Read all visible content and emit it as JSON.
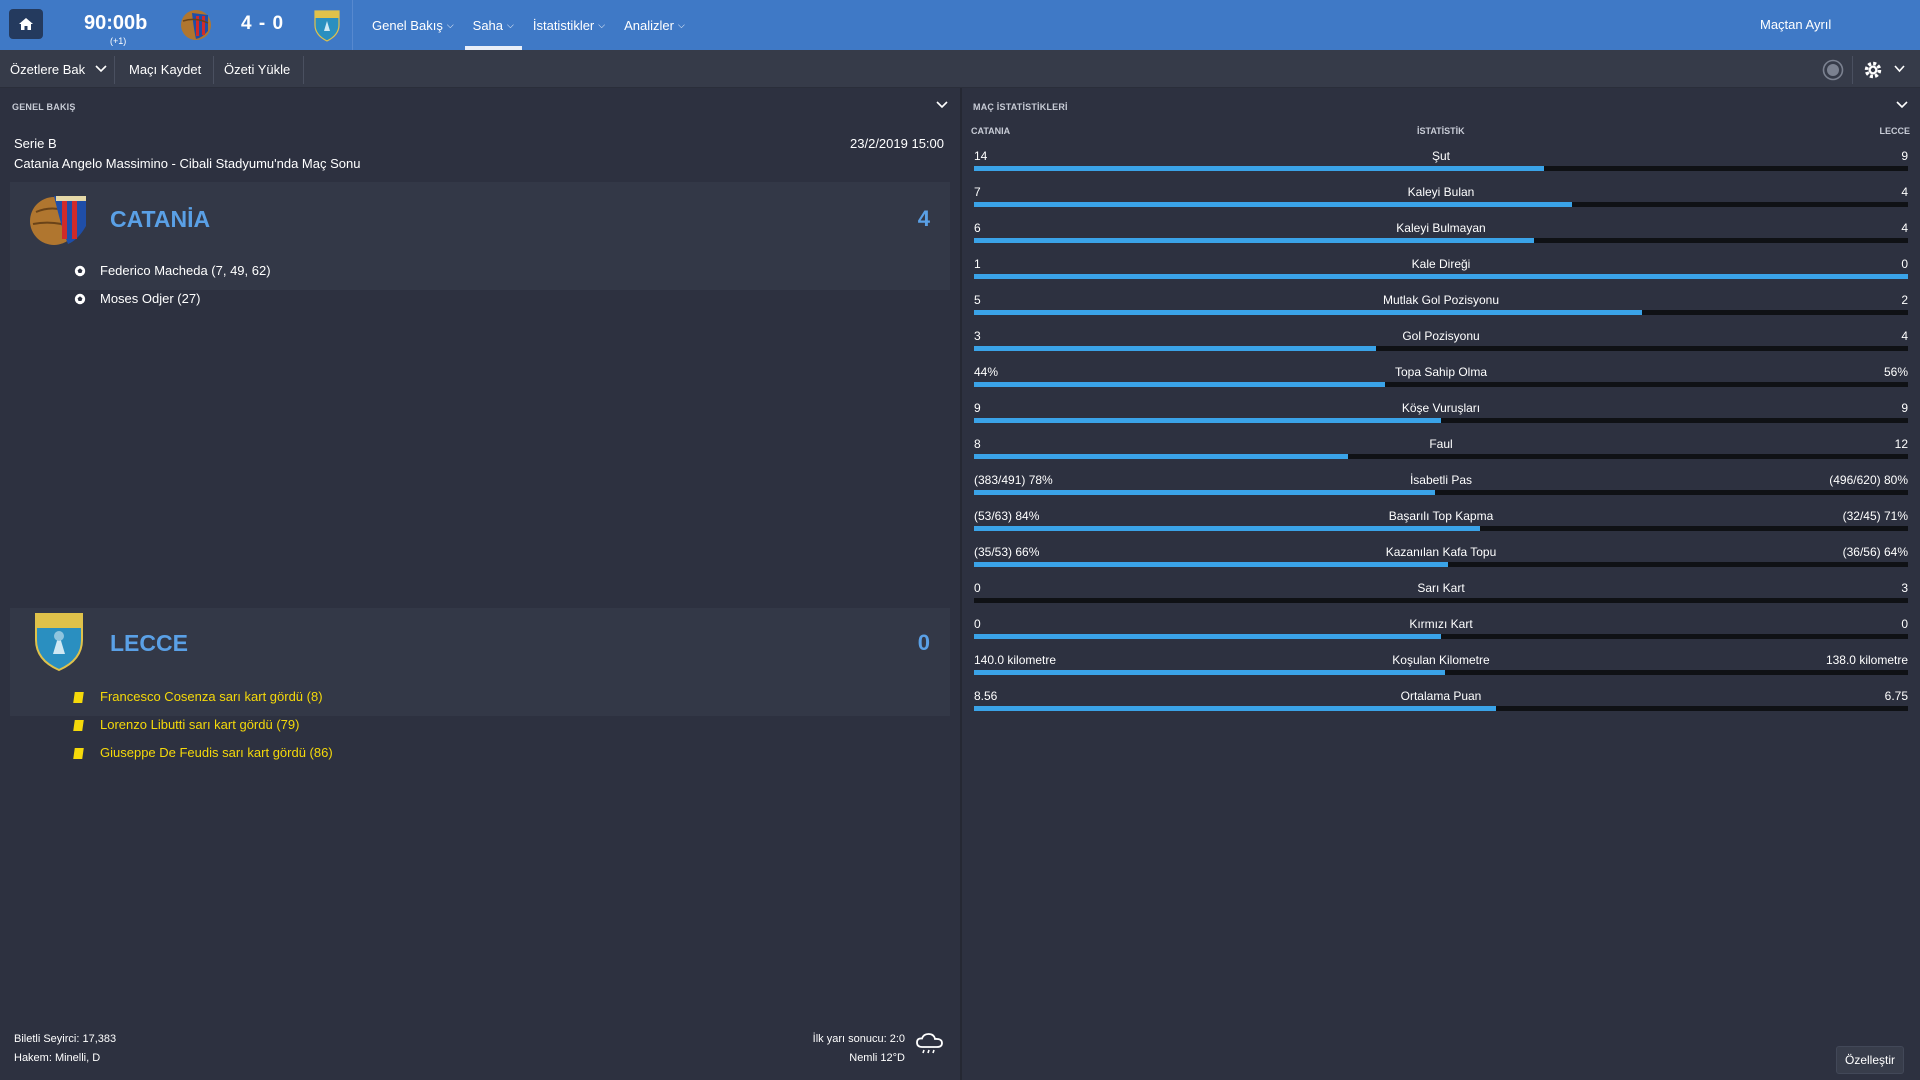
{
  "topbar": {
    "clock": "90:00b",
    "clock_extra": "(+1)",
    "score": "4 - 0",
    "nav": [
      {
        "label": "Genel Bakış",
        "active": false
      },
      {
        "label": "Saha",
        "active": true
      },
      {
        "label": "İstatistikler",
        "active": false
      },
      {
        "label": "Analizler",
        "active": false
      }
    ],
    "leave_label": "Maçtan Ayrıl"
  },
  "toolbar": {
    "highlights_label": "Özetlere Bak",
    "save_match_label": "Maçı Kaydet",
    "load_highlights_label": "Özeti Yükle"
  },
  "overview": {
    "panel_title": "GENEL BAKIŞ",
    "league": "Serie B",
    "venue": "Catania Angelo Massimino - Cibali Stadyumu'nda Maç Sonu",
    "date": "23/2/2019 15:00",
    "home": {
      "name": "CATANİA",
      "goals": "4",
      "events": [
        {
          "text": "Federico Macheda (7, 49, 62)",
          "type": "goal"
        },
        {
          "text": "Moses Odjer (27)",
          "type": "goal"
        }
      ]
    },
    "away": {
      "name": "LECCE",
      "goals": "0",
      "events": [
        {
          "text": "Francesco Cosenza sarı kart gördü (8)",
          "type": "yellow"
        },
        {
          "text": "Lorenzo Libutti sarı kart gördü (79)",
          "type": "yellow"
        },
        {
          "text": "Giuseppe De Feudis sarı kart gördü (86)",
          "type": "yellow"
        }
      ]
    },
    "attendance": "Biletli Seyirci: 17,383",
    "referee": "Hakem: Minelli, D",
    "halftime": "İlk yarı sonucu: 2:0",
    "weather": "Nemli 12°D"
  },
  "stats": {
    "panel_title": "MAÇ İSTATİSTİKLERİ",
    "col_home": "CATANIA",
    "col_stat": "İSTATİSTİK",
    "col_away": "LECCE",
    "customize_label": "Özelleştir",
    "rows": [
      {
        "home": "14",
        "label": "Şut",
        "away": "9",
        "home_share": 0.61
      },
      {
        "home": "7",
        "label": "Kaleyi Bulan",
        "away": "4",
        "home_share": 0.64
      },
      {
        "home": "6",
        "label": "Kaleyi Bulmayan",
        "away": "4",
        "home_share": 0.6
      },
      {
        "home": "1",
        "label": "Kale Direği",
        "away": "0",
        "home_share": 1.0
      },
      {
        "home": "5",
        "label": "Mutlak Gol Pozisyonu",
        "away": "2",
        "home_share": 0.715
      },
      {
        "home": "3",
        "label": "Gol Pozisyonu",
        "away": "4",
        "home_share": 0.43
      },
      {
        "home": "44%",
        "label": "Topa Sahip Olma",
        "away": "56%",
        "home_share": 0.44
      },
      {
        "home": "9",
        "label": "Köşe Vuruşları",
        "away": "9",
        "home_share": 0.5
      },
      {
        "home": "8",
        "label": "Faul",
        "away": "12",
        "home_share": 0.4
      },
      {
        "home": "(383/491) 78%",
        "label": "İsabetli Pas",
        "away": "(496/620) 80%",
        "home_share": 0.494
      },
      {
        "home": "(53/63) 84%",
        "label": "Başarılı Top Kapma",
        "away": "(32/45) 71%",
        "home_share": 0.542
      },
      {
        "home": "(35/53) 66%",
        "label": "Kazanılan Kafa Topu",
        "away": "(36/56) 64%",
        "home_share": 0.508
      },
      {
        "home": "0",
        "label": "Sarı Kart",
        "away": "3",
        "home_share": 0.0
      },
      {
        "home": "0",
        "label": "Kırmızı Kart",
        "away": "0",
        "home_share": 0.5
      },
      {
        "home": "140.0 kilometre",
        "label": "Koşulan Kilometre",
        "away": "138.0 kilometre",
        "home_share": 0.504
      },
      {
        "home": "8.56",
        "label": "Ortalama Puan",
        "away": "6.75",
        "home_share": 0.559
      }
    ]
  },
  "colors": {
    "topbar": "#3f79c6",
    "accent_team": "#5aa0e6",
    "stat_bar_fill": "#3aa3e8",
    "yellow_card": "#f5d90a"
  }
}
